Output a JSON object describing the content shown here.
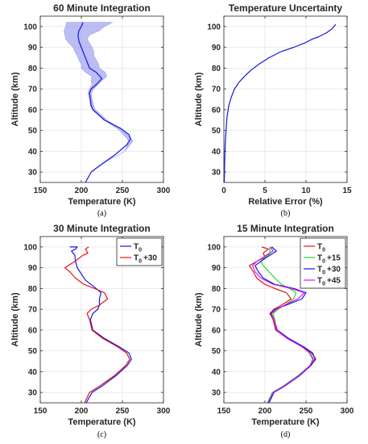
{
  "chart_data": [
    {
      "panel": "a",
      "type": "line",
      "title": "60 Minute Integration",
      "xlabel": "Temperature (K)",
      "ylabel": "Altitude (km)",
      "caption": "(a)",
      "xlim": [
        150,
        300
      ],
      "ylim": [
        25,
        105
      ],
      "xticks": [
        "150",
        "200",
        "250",
        "300"
      ],
      "yticks": [
        "30",
        "40",
        "50",
        "60",
        "70",
        "80",
        "90",
        "100"
      ],
      "grid": true,
      "legend": null,
      "colors": {
        "line": "#1414e6",
        "band": "#9a9af0"
      },
      "band": {
        "y": [
          25,
          30,
          35,
          40,
          45,
          50,
          55,
          60,
          62,
          65,
          68,
          70,
          72,
          74,
          76,
          78,
          80,
          82,
          84,
          86,
          88,
          90,
          92,
          94,
          96,
          98,
          100,
          102
        ],
        "lower": [
          205,
          212,
          230,
          253,
          258,
          247,
          228,
          214,
          211,
          210,
          208,
          210,
          213,
          212,
          213,
          205,
          200,
          200,
          197,
          195,
          192,
          190,
          185,
          181,
          180,
          179,
          181,
          182
        ],
        "upper": [
          205,
          212,
          230,
          253,
          263,
          251,
          231,
          217,
          215,
          213,
          212,
          215,
          220,
          225,
          231,
          229,
          222,
          221,
          218,
          215,
          215,
          213,
          210,
          207,
          210,
          222,
          228,
          238
        ]
      },
      "series": [
        {
          "x": [
            205,
            212,
            222,
            240,
            255,
            260,
            258,
            248,
            228,
            214,
            212,
            211,
            210,
            212,
            218,
            225,
            218,
            210,
            208,
            206,
            204,
            202,
            200,
            197,
            196,
            197,
            200,
            202
          ],
          "y": [
            25,
            30,
            33,
            38,
            43,
            46,
            48,
            51,
            55,
            60,
            62,
            65,
            68,
            70,
            72,
            75,
            78,
            80,
            82,
            84,
            86,
            88,
            90,
            93,
            96,
            98,
            100,
            102
          ]
        }
      ]
    },
    {
      "panel": "b",
      "type": "line",
      "title": "Temperature Uncertainty",
      "xlabel": "Relative Error (%)",
      "ylabel": "Altitude (km)",
      "caption": "(b)",
      "xlim": [
        0,
        15
      ],
      "ylim": [
        25,
        105
      ],
      "xticks": [
        "0",
        "5",
        "10",
        "15"
      ],
      "yticks": [
        "30",
        "40",
        "50",
        "60",
        "70",
        "80",
        "90",
        "100"
      ],
      "grid": true,
      "legend": null,
      "colors": {
        "line": "#1414e6"
      },
      "series": [
        {
          "x": [
            0.05,
            0.1,
            0.15,
            0.2,
            0.3,
            0.4,
            0.6,
            0.9,
            1.3,
            1.8,
            2.5,
            3.3,
            4.3,
            5.5,
            7.0,
            8.5,
            9.8,
            10.8,
            11.5,
            12.5,
            13.2,
            13.6
          ],
          "y": [
            25,
            35,
            42,
            46,
            52,
            57,
            62,
            66,
            70,
            73,
            76,
            79,
            82,
            85,
            88,
            90,
            92,
            94,
            95,
            97,
            99,
            101
          ]
        }
      ]
    },
    {
      "panel": "c",
      "type": "line",
      "title": "30 Minute Integration",
      "xlabel": "Temperature (K)",
      "ylabel": "Altitude (km)",
      "caption": "(c)",
      "xlim": [
        150,
        300
      ],
      "ylim": [
        25,
        105
      ],
      "xticks": [
        "150",
        "200",
        "250",
        "300"
      ],
      "yticks": [
        "30",
        "40",
        "50",
        "60",
        "70",
        "80",
        "90",
        "100"
      ],
      "grid": true,
      "legend": "top-right",
      "series": [
        {
          "name": "T",
          "name_sub": "0",
          "name_suffix": "",
          "color": "#1414e6",
          "x": [
            206,
            213,
            225,
            242,
            256,
            261,
            258,
            246,
            228,
            214,
            211,
            214,
            220,
            222,
            222,
            224,
            215,
            205,
            200,
            195,
            193,
            192,
            188,
            193,
            195,
            186
          ],
          "y": [
            25,
            30,
            33,
            38,
            43,
            46,
            49,
            52,
            56,
            60,
            65,
            68,
            70,
            72,
            75,
            78,
            81,
            84,
            87,
            90,
            93,
            96,
            98,
            99,
            100,
            100
          ]
        },
        {
          "name": "T",
          "name_sub": "0",
          "name_suffix": "+30",
          "color": "#e61414",
          "x": [
            204,
            210,
            222,
            240,
            254,
            259,
            255,
            244,
            226,
            213,
            210,
            207,
            212,
            222,
            232,
            228,
            216,
            203,
            193,
            186,
            180,
            192,
            202,
            208,
            205,
            209
          ],
          "y": [
            25,
            30,
            33,
            38,
            43,
            46,
            49,
            52,
            56,
            60,
            65,
            68,
            70,
            72,
            75,
            78,
            80,
            82,
            85,
            88,
            90,
            93,
            96,
            97,
            99,
            100
          ]
        }
      ]
    },
    {
      "panel": "d",
      "type": "line",
      "title": "15 Minute Integration",
      "xlabel": "Temperature (K)",
      "ylabel": "Altitude (km)",
      "caption": "(d)",
      "xlim": [
        150,
        300
      ],
      "ylim": [
        25,
        105
      ],
      "xticks": [
        "150",
        "200",
        "250",
        "300"
      ],
      "yticks": [
        "30",
        "40",
        "50",
        "60",
        "70",
        "80",
        "90",
        "100"
      ],
      "grid": true,
      "legend": "top-right",
      "series": [
        {
          "name": "T",
          "name_sub": "0",
          "name_suffix": "",
          "color": "#e61414",
          "x": [
            204,
            210,
            223,
            241,
            256,
            262,
            257,
            246,
            227,
            213,
            210,
            206,
            211,
            220,
            232,
            226,
            212,
            200,
            190,
            186,
            181,
            190,
            200,
            198,
            204,
            196
          ],
          "y": [
            25,
            30,
            33,
            38,
            43,
            46,
            49,
            52,
            56,
            60,
            65,
            68,
            70,
            72,
            75,
            78,
            80,
            82,
            85,
            88,
            91,
            93,
            95,
            97,
            99,
            100
          ]
        },
        {
          "name": "T",
          "name_sub": "0",
          "name_suffix": "+15",
          "color": "#22dd22",
          "x": [
            203,
            209,
            222,
            240,
            255,
            258,
            254,
            245,
            227,
            214,
            212,
            210,
            216,
            224,
            235,
            238,
            230,
            220,
            212,
            205,
            198,
            195,
            200,
            207,
            205,
            210
          ],
          "y": [
            25,
            30,
            33,
            38,
            43,
            46,
            49,
            52,
            56,
            60,
            65,
            68,
            70,
            72,
            75,
            78,
            80,
            82,
            85,
            88,
            91,
            93,
            95,
            97,
            99,
            100
          ]
        },
        {
          "name": "T",
          "name_sub": "0",
          "name_suffix": "+30",
          "color": "#1414e6",
          "x": [
            205,
            211,
            224,
            242,
            256,
            261,
            258,
            247,
            229,
            215,
            211,
            207,
            212,
            226,
            245,
            250,
            235,
            212,
            198,
            192,
            188,
            195,
            202,
            210,
            214,
            208
          ],
          "y": [
            25,
            30,
            33,
            38,
            43,
            46,
            49,
            52,
            56,
            60,
            65,
            68,
            70,
            72,
            75,
            78,
            80,
            82,
            85,
            88,
            91,
            93,
            95,
            97,
            98,
            100
          ]
        },
        {
          "name": "T",
          "name_sub": "0",
          "name_suffix": "+45",
          "color": "#e614e6",
          "x": [
            204,
            210,
            223,
            241,
            255,
            259,
            255,
            245,
            227,
            214,
            211,
            208,
            214,
            224,
            240,
            248,
            232,
            210,
            195,
            188,
            185,
            190,
            198,
            205,
            210,
            206
          ],
          "y": [
            25,
            30,
            33,
            38,
            43,
            46,
            49,
            52,
            56,
            60,
            65,
            68,
            70,
            72,
            75,
            78,
            80,
            82,
            85,
            88,
            91,
            93,
            95,
            97,
            98,
            100
          ]
        }
      ]
    }
  ]
}
